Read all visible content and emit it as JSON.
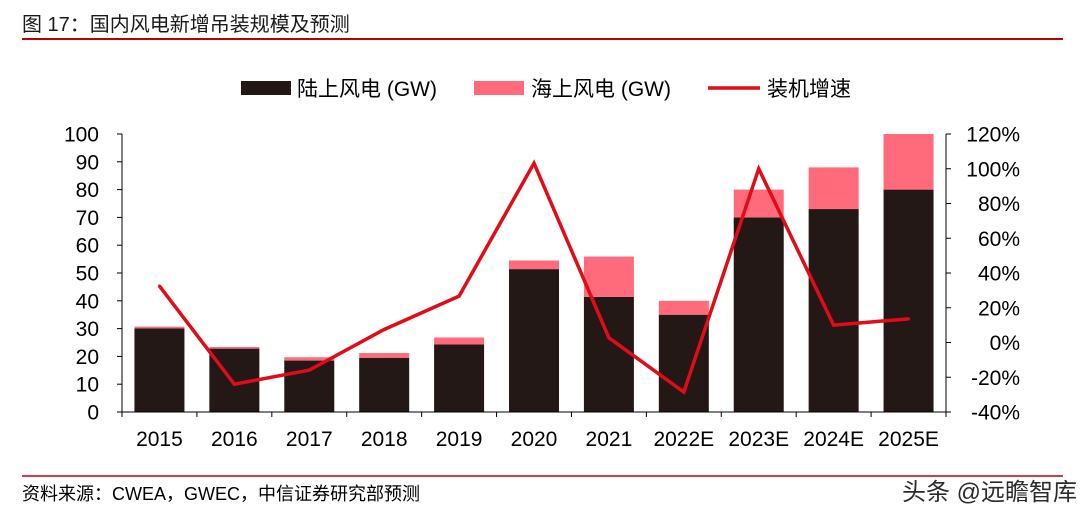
{
  "chart_data": {
    "type": "bar",
    "title": "图 17：国内风电新增吊装规模及预测",
    "categories": [
      "2015",
      "2016",
      "2017",
      "2018",
      "2019",
      "2020",
      "2021",
      "2022E",
      "2023E",
      "2024E",
      "2025E"
    ],
    "series": [
      {
        "name": "陆上风电 (GW)",
        "type": "bar",
        "color": "#231815",
        "values": [
          30.1,
          22.8,
          18.5,
          19.5,
          24.3,
          51.4,
          41.4,
          35,
          70,
          73,
          80
        ]
      },
      {
        "name": "海上风电 (GW)",
        "type": "bar",
        "color": "#ff6b7a",
        "values": [
          0.6,
          0.6,
          1.2,
          1.7,
          2.5,
          3.1,
          14.5,
          5,
          10,
          15,
          20
        ]
      },
      {
        "name": "装机增速",
        "type": "line",
        "color": "#e00c17",
        "values": [
          32.5,
          -24,
          -15.9,
          7.5,
          26.7,
          103.2,
          2.7,
          -28.5,
          100,
          10,
          13.6
        ]
      }
    ],
    "stacked": true,
    "ylim": [
      0,
      100
    ],
    "yticks": [
      "0",
      "10",
      "20",
      "30",
      "40",
      "50",
      "60",
      "70",
      "80",
      "90",
      "100"
    ],
    "y2lim": [
      -40,
      120
    ],
    "y2ticks": [
      "-40%",
      "-20%",
      "0%",
      "20%",
      "40%",
      "60%",
      "80%",
      "100%",
      "120%"
    ],
    "grid": false,
    "legend": "top"
  },
  "figure": {
    "source": "资料来源：CWEA，GWEC，中信证券研究部预测",
    "watermark": "头条 @远瞻智库"
  },
  "colors": {
    "rule": "#c00000",
    "axis": "#000000"
  }
}
